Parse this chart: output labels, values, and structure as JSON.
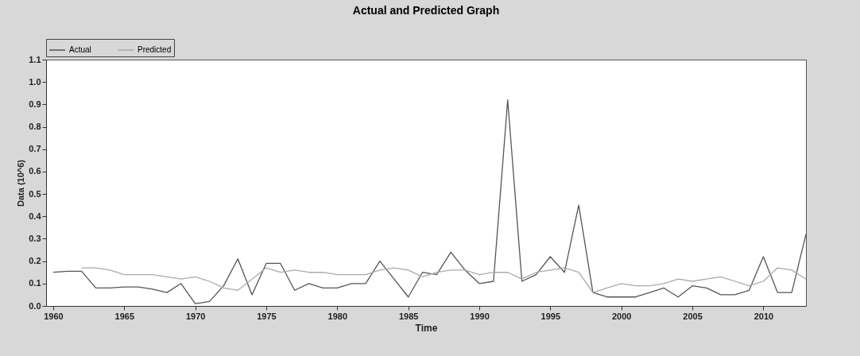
{
  "chart_data": {
    "type": "line",
    "title": "Actual and Predicted Graph",
    "xlabel": "Time",
    "ylabel": "Data (10^6)",
    "xlim": [
      1959.5,
      2013
    ],
    "xticks": [
      1960,
      1965,
      1970,
      1975,
      1980,
      1985,
      1990,
      1995,
      2000,
      2005,
      2010
    ],
    "ylim": [
      0,
      1.1
    ],
    "yticks": [
      {
        "value": 0,
        "label": "0.0"
      },
      0.1,
      0.2,
      0.3,
      0.4,
      0.5,
      0.6,
      0.7,
      0.8,
      0.9,
      {
        "value": 1,
        "label": "1.0"
      },
      1.1
    ],
    "grid": false,
    "legend": "top left",
    "marker": "none",
    "line_style": "solid",
    "series": [
      {
        "name": "Actual",
        "color": "#555555",
        "x": [
          1960,
          1961,
          1962,
          1963,
          1964,
          1965,
          1966,
          1967,
          1968,
          1969,
          1970,
          1971,
          1972,
          1973,
          1974,
          1975,
          1976,
          1977,
          1978,
          1979,
          1980,
          1981,
          1982,
          1983,
          1984,
          1985,
          1986,
          1987,
          1988,
          1989,
          1990,
          1991,
          1992,
          1993,
          1994,
          1995,
          1996,
          1997,
          1998,
          1999,
          2000,
          2001,
          2002,
          2003,
          2004,
          2005,
          2006,
          2007,
          2008,
          2009,
          2010,
          2011,
          2012,
          2013
        ],
        "values": [
          0.15,
          0.155,
          0.155,
          0.08,
          0.08,
          0.085,
          0.085,
          0.075,
          0.06,
          0.1,
          0.01,
          0.02,
          0.09,
          0.21,
          0.05,
          0.19,
          0.19,
          0.07,
          0.1,
          0.08,
          0.08,
          0.1,
          0.1,
          0.2,
          0.12,
          0.04,
          0.15,
          0.14,
          0.24,
          0.16,
          0.1,
          0.11,
          0.92,
          0.11,
          0.14,
          0.22,
          0.15,
          0.45,
          0.06,
          0.04,
          0.04,
          0.04,
          0.06,
          0.08,
          0.04,
          0.09,
          0.08,
          0.05,
          0.05,
          0.07,
          0.22,
          0.06,
          0.06,
          0.32
        ]
      },
      {
        "name": "Predicted",
        "color": "#aaaaaa",
        "x": [
          1962,
          1963,
          1964,
          1965,
          1966,
          1967,
          1968,
          1969,
          1970,
          1971,
          1972,
          1973,
          1974,
          1975,
          1976,
          1977,
          1978,
          1979,
          1980,
          1981,
          1982,
          1983,
          1984,
          1985,
          1986,
          1987,
          1988,
          1989,
          1990,
          1991,
          1992,
          1993,
          1994,
          1995,
          1996,
          1997,
          1998,
          1999,
          2000,
          2001,
          2002,
          2003,
          2004,
          2005,
          2006,
          2007,
          2008,
          2009,
          2010,
          2011,
          2012,
          2013
        ],
        "values": [
          0.17,
          0.17,
          0.16,
          0.14,
          0.14,
          0.14,
          0.13,
          0.12,
          0.13,
          0.11,
          0.08,
          0.07,
          0.12,
          0.17,
          0.15,
          0.16,
          0.15,
          0.15,
          0.14,
          0.14,
          0.14,
          0.16,
          0.17,
          0.16,
          0.13,
          0.15,
          0.16,
          0.16,
          0.14,
          0.15,
          0.15,
          0.12,
          0.15,
          0.16,
          0.17,
          0.15,
          0.06,
          0.08,
          0.1,
          0.09,
          0.09,
          0.1,
          0.12,
          0.11,
          0.12,
          0.13,
          0.11,
          0.09,
          0.11,
          0.17,
          0.16,
          0.12
        ]
      }
    ]
  }
}
